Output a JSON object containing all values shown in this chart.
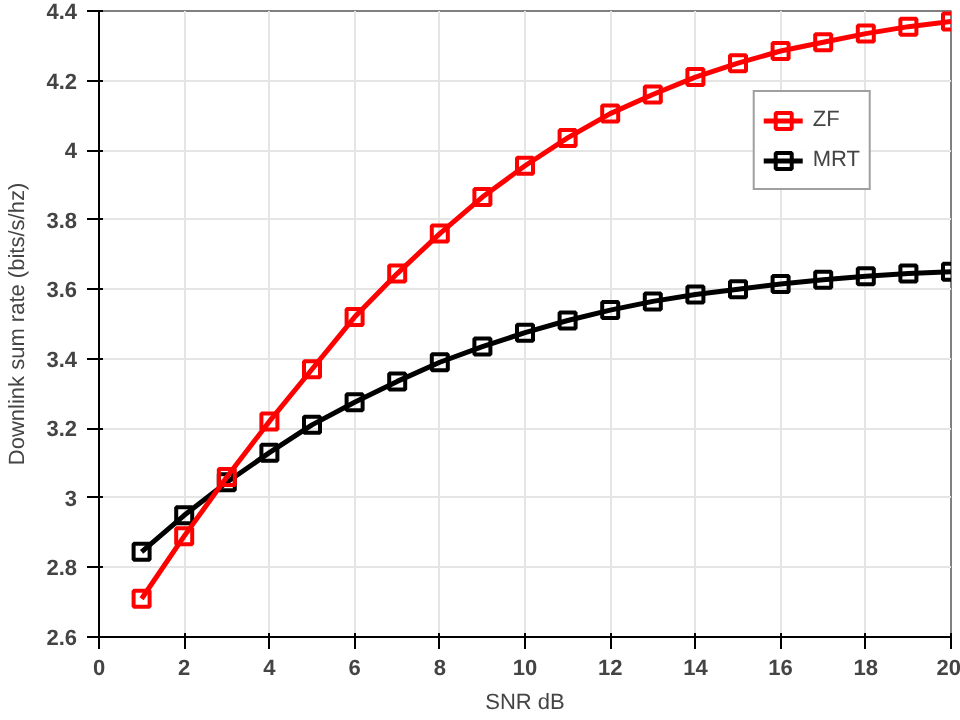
{
  "chart_data": {
    "type": "line",
    "xlabel": "SNR dB",
    "ylabel": "Downlink sum rate (bits/s/hz)",
    "x": [
      1,
      2,
      3,
      4,
      5,
      6,
      7,
      8,
      9,
      10,
      11,
      12,
      13,
      14,
      15,
      16,
      17,
      18,
      19,
      20
    ],
    "series": [
      {
        "name": "ZF",
        "color": "#ff0000",
        "values": [
          2.71,
          2.89,
          3.06,
          3.22,
          3.37,
          3.52,
          3.645,
          3.76,
          3.865,
          3.955,
          4.035,
          4.105,
          4.16,
          4.21,
          4.25,
          4.285,
          4.31,
          4.335,
          4.355,
          4.37
        ]
      },
      {
        "name": "MRT",
        "color": "#000000",
        "values": [
          2.845,
          2.95,
          3.045,
          3.13,
          3.21,
          3.275,
          3.335,
          3.39,
          3.435,
          3.475,
          3.51,
          3.54,
          3.565,
          3.585,
          3.6,
          3.615,
          3.627,
          3.637,
          3.645,
          3.65
        ]
      }
    ],
    "xlim": [
      0,
      20
    ],
    "ylim": [
      2.6,
      4.4
    ],
    "xticks": [
      0,
      2,
      4,
      6,
      8,
      10,
      12,
      14,
      16,
      18,
      20
    ],
    "yticks": [
      2.6,
      2.8,
      3,
      3.2,
      3.4,
      3.6,
      3.8,
      4,
      4.2,
      4.4
    ],
    "grid": true,
    "legend": "top right",
    "marker": "square",
    "line_style": "solid"
  }
}
